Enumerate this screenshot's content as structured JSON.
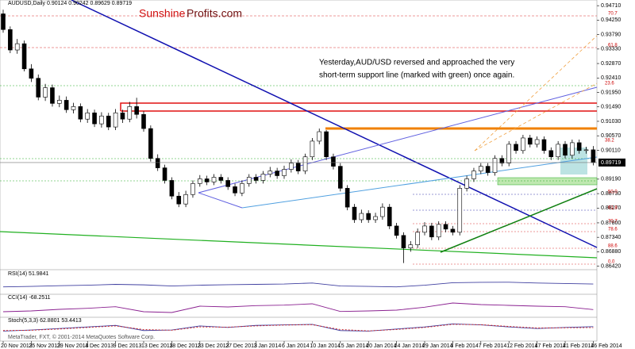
{
  "chart_data": [
    {
      "type": "candlestick",
      "title": "AUDUSD,Daily  0.90124 0.90242 0.89629 0.89719",
      "watermark": [
        "Sunshine",
        "Profits.com"
      ],
      "annotation": [
        "Yesterday,AUD/USD reversed and approached the very",
        "short-term support line (marked with green) once again."
      ],
      "level_labels": [
        "70.7",
        "61.8",
        "23.6",
        "38.2",
        "50.0",
        "61.8",
        "70.7",
        "78.6",
        "88.6",
        "0.0"
      ],
      "categories": [
        "20 Nov 2013",
        null,
        null,
        null,
        "25 Nov 2013",
        null,
        null,
        null,
        "29 Nov 2013",
        null,
        null,
        null,
        "4 Dec 2013",
        null,
        null,
        null,
        "9 Dec 2013",
        null,
        null,
        null,
        "13 Dec 2013",
        null,
        null,
        null,
        "18 Dec 2013",
        null,
        null,
        null,
        "23 Dec 2013",
        null,
        null,
        null,
        "27 Dec 2013",
        null,
        null,
        null,
        "3 Jan 2014",
        null,
        null,
        null,
        "6 Jan 2014",
        null,
        null,
        null,
        "10 Jan 2014",
        null,
        null,
        null,
        "15 Jan 2014",
        null,
        null,
        null,
        "20 Jan 2014",
        null,
        null,
        null,
        "24 Jan 2014",
        null,
        null,
        null,
        "29 Jan 2014",
        null,
        null,
        null,
        "3 Feb 2014",
        null,
        null,
        null,
        "7 Feb 2014",
        null,
        null,
        null,
        "12 Feb 2014",
        null,
        null,
        null,
        "17 Feb 2014",
        null,
        null,
        null,
        "21 Feb 2014",
        null,
        null,
        null,
        "26 Feb 2014"
      ],
      "open": [
        0.9445,
        0.9395,
        0.933,
        0.935,
        0.927,
        0.924,
        0.918,
        0.921,
        0.916,
        0.917,
        0.914,
        0.915,
        0.911,
        0.913,
        0.9095,
        0.912,
        0.9085,
        0.913,
        0.911,
        0.915,
        0.9125,
        0.908,
        0.8985,
        0.8955,
        0.8915,
        0.8865,
        0.884,
        0.887,
        0.8905,
        0.892,
        0.891,
        0.8925,
        0.8915,
        0.8895,
        0.8875,
        0.8905,
        0.8925,
        0.8915,
        0.8935,
        0.8945,
        0.893,
        0.895,
        0.897,
        0.8945,
        0.899,
        0.904,
        0.907,
        0.899,
        0.896,
        0.889,
        0.883,
        0.879,
        0.881,
        0.879,
        0.88,
        0.883,
        0.877,
        0.874,
        0.87,
        0.871,
        0.875,
        0.877,
        0.8735,
        0.8775,
        0.876,
        0.875,
        0.889,
        0.892,
        0.8945,
        0.896,
        0.894,
        0.8985,
        0.897,
        0.903,
        0.901,
        0.905,
        0.903,
        0.9045,
        0.901,
        0.899,
        0.903,
        0.8995,
        0.9035,
        0.901,
        0.90124
      ],
      "high": [
        0.9458,
        0.9405,
        0.9365,
        0.936,
        0.9285,
        0.9252,
        0.9222,
        0.922,
        0.9185,
        0.9182,
        0.9162,
        0.916,
        0.9142,
        0.914,
        0.9132,
        0.913,
        0.9142,
        0.914,
        0.9165,
        0.9178,
        0.9135,
        0.909,
        0.8998,
        0.8965,
        0.8925,
        0.8878,
        0.8882,
        0.8915,
        0.8932,
        0.893,
        0.8935,
        0.8935,
        0.8925,
        0.8905,
        0.8915,
        0.8935,
        0.8935,
        0.8945,
        0.8958,
        0.8955,
        0.8962,
        0.8982,
        0.898,
        0.9,
        0.905,
        0.908,
        0.9075,
        0.9,
        0.897,
        0.89,
        0.884,
        0.8822,
        0.882,
        0.8812,
        0.8842,
        0.884,
        0.878,
        0.875,
        0.8722,
        0.8762,
        0.8782,
        0.878,
        0.8785,
        0.8785,
        0.877,
        0.89,
        0.893,
        0.8955,
        0.897,
        0.897,
        0.8995,
        0.8995,
        0.904,
        0.904,
        0.906,
        0.906,
        0.9055,
        0.9055,
        0.902,
        0.904,
        0.904,
        0.9045,
        0.9045,
        0.9022,
        0.90242
      ],
      "low": [
        0.9385,
        0.932,
        0.9318,
        0.9262,
        0.9228,
        0.917,
        0.9168,
        0.915,
        0.9148,
        0.913,
        0.9128,
        0.91,
        0.9098,
        0.9085,
        0.9083,
        0.9075,
        0.9075,
        0.9098,
        0.91,
        0.9112,
        0.907,
        0.8975,
        0.8945,
        0.8905,
        0.8855,
        0.883,
        0.883,
        0.886,
        0.8895,
        0.89,
        0.89,
        0.8905,
        0.8885,
        0.8865,
        0.8865,
        0.8895,
        0.8905,
        0.8905,
        0.8925,
        0.892,
        0.892,
        0.894,
        0.8935,
        0.8935,
        0.898,
        0.903,
        0.898,
        0.895,
        0.888,
        0.882,
        0.878,
        0.878,
        0.878,
        0.878,
        0.879,
        0.876,
        0.873,
        0.8652,
        0.8688,
        0.87,
        0.874,
        0.8725,
        0.8725,
        0.875,
        0.874,
        0.874,
        0.888,
        0.891,
        0.8935,
        0.893,
        0.893,
        0.896,
        0.896,
        0.9,
        0.9,
        0.902,
        0.902,
        0.9,
        0.898,
        0.898,
        0.8985,
        0.8985,
        0.9,
        0.9,
        0.89629
      ],
      "close": [
        0.9395,
        0.933,
        0.935,
        0.927,
        0.924,
        0.918,
        0.921,
        0.916,
        0.917,
        0.914,
        0.915,
        0.911,
        0.913,
        0.9095,
        0.912,
        0.9085,
        0.913,
        0.911,
        0.915,
        0.9125,
        0.908,
        0.8985,
        0.8955,
        0.8915,
        0.8865,
        0.884,
        0.887,
        0.8905,
        0.892,
        0.891,
        0.8925,
        0.8915,
        0.8895,
        0.8875,
        0.8905,
        0.8925,
        0.8915,
        0.8935,
        0.8945,
        0.893,
        0.895,
        0.897,
        0.8945,
        0.899,
        0.904,
        0.907,
        0.899,
        0.896,
        0.889,
        0.883,
        0.879,
        0.881,
        0.879,
        0.88,
        0.883,
        0.877,
        0.874,
        0.87,
        0.871,
        0.875,
        0.877,
        0.8735,
        0.8775,
        0.876,
        0.875,
        0.889,
        0.892,
        0.8945,
        0.896,
        0.894,
        0.8985,
        0.897,
        0.903,
        0.901,
        0.905,
        0.903,
        0.9045,
        0.901,
        0.899,
        0.903,
        0.8995,
        0.9035,
        0.901,
        0.90124,
        0.89719
      ],
      "up_color": "#ffffff",
      "down_color": "#000000",
      "ylim": [
        0.8636,
        0.9484
      ],
      "yticks": [
        {
          "value": 0.9471,
          "label": "0.94710"
        },
        {
          "value": 0.9425,
          "label": "0.94250"
        },
        {
          "value": 0.9379,
          "label": "0.93790"
        },
        {
          "value": 0.9333,
          "label": "0.93330"
        },
        {
          "value": 0.9287,
          "label": "0.92870"
        },
        {
          "value": 0.9241,
          "label": "0.92410"
        },
        {
          "value": 0.9195,
          "label": "0.91950"
        },
        {
          "value": 0.9149,
          "label": "0.91490"
        },
        {
          "value": 0.9103,
          "label": "0.91030"
        },
        {
          "value": 0.9057,
          "label": "0.90570"
        },
        {
          "value": 0.9011,
          "label": "0.90110"
        },
        {
          "value": 0.8919,
          "label": "0.89190"
        },
        {
          "value": 0.8873,
          "label": "0.88730"
        },
        {
          "value": 0.8827,
          "label": "0.88270"
        },
        {
          "value": 0.878,
          "label": "0.87800"
        },
        {
          "value": 0.8734,
          "label": "0.87340"
        },
        {
          "value": 0.8688,
          "label": "0.86880"
        },
        {
          "value": 0.8642,
          "label": "0.86420"
        }
      ]
    },
    {
      "type": "line",
      "title": "RSI(14) 51.9841",
      "color": "#4040a0",
      "ylim": [
        0,
        100
      ],
      "values": [
        35,
        38,
        42,
        45,
        50,
        47,
        40,
        45,
        48,
        50,
        52,
        58,
        40,
        38,
        35,
        45,
        60,
        62,
        63,
        58,
        55,
        51.9841
      ]
    },
    {
      "type": "line",
      "title": "CCI(14) -68.2511",
      "color": "#8a2090",
      "ylim": [
        -300,
        300
      ],
      "values": [
        -150,
        -120,
        -60,
        -20,
        40,
        -150,
        -180,
        60,
        30,
        80,
        100,
        150,
        -140,
        -120,
        -90,
        20,
        180,
        120,
        90,
        60,
        40,
        -68.2511
      ]
    },
    {
      "type": "line",
      "title": "Stoch(5,3,3) 62.8801 53.4413",
      "ylim": [
        0,
        100
      ],
      "series": [
        {
          "color": "#4040a0",
          "values": [
            20,
            30,
            45,
            60,
            75,
            25,
            30,
            70,
            55,
            75,
            80,
            85,
            25,
            20,
            40,
            60,
            90,
            80,
            60,
            45,
            55,
            62.8801
          ]
        },
        {
          "color": "#d02020",
          "values": [
            25,
            28,
            40,
            55,
            70,
            35,
            28,
            60,
            58,
            70,
            78,
            82,
            35,
            22,
            35,
            55,
            85,
            82,
            65,
            50,
            52,
            53.4413
          ]
        }
      ]
    }
  ],
  "footer": "MetaTrader, FXT, © 2001-2014 MetaQuotes Software Corp."
}
